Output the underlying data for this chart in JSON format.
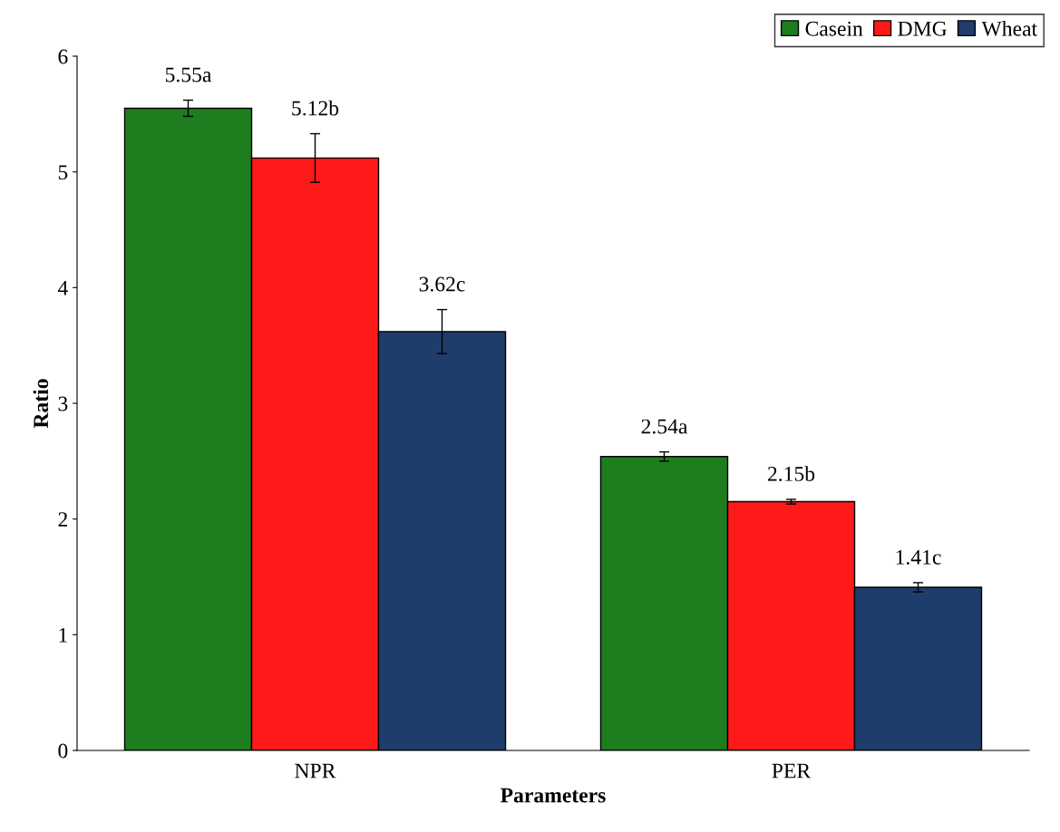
{
  "chart_data": {
    "type": "bar",
    "xlabel": "Parameters",
    "ylabel": "Ratio",
    "categories": [
      "NPR",
      "PER"
    ],
    "series": [
      {
        "name": "Casein",
        "color": "#1e7d1e",
        "values": [
          5.55,
          2.54
        ],
        "errors": [
          0.07,
          0.04
        ],
        "value_labels": [
          "5.55a",
          "2.54a"
        ]
      },
      {
        "name": "DMG",
        "color": "#ff1a1a",
        "values": [
          5.12,
          2.15
        ],
        "errors": [
          0.21,
          0.02
        ],
        "value_labels": [
          "5.12b",
          "2.15b"
        ]
      },
      {
        "name": "Wheat",
        "color": "#1f3d6b",
        "values": [
          3.62,
          1.41
        ],
        "errors": [
          0.19,
          0.04
        ],
        "value_labels": [
          "3.62c",
          "1.41c"
        ]
      }
    ],
    "ylim": [
      0,
      6
    ],
    "yticks": [
      0,
      1,
      2,
      3,
      4,
      5,
      6
    ],
    "grid": false,
    "legend": "top right"
  }
}
